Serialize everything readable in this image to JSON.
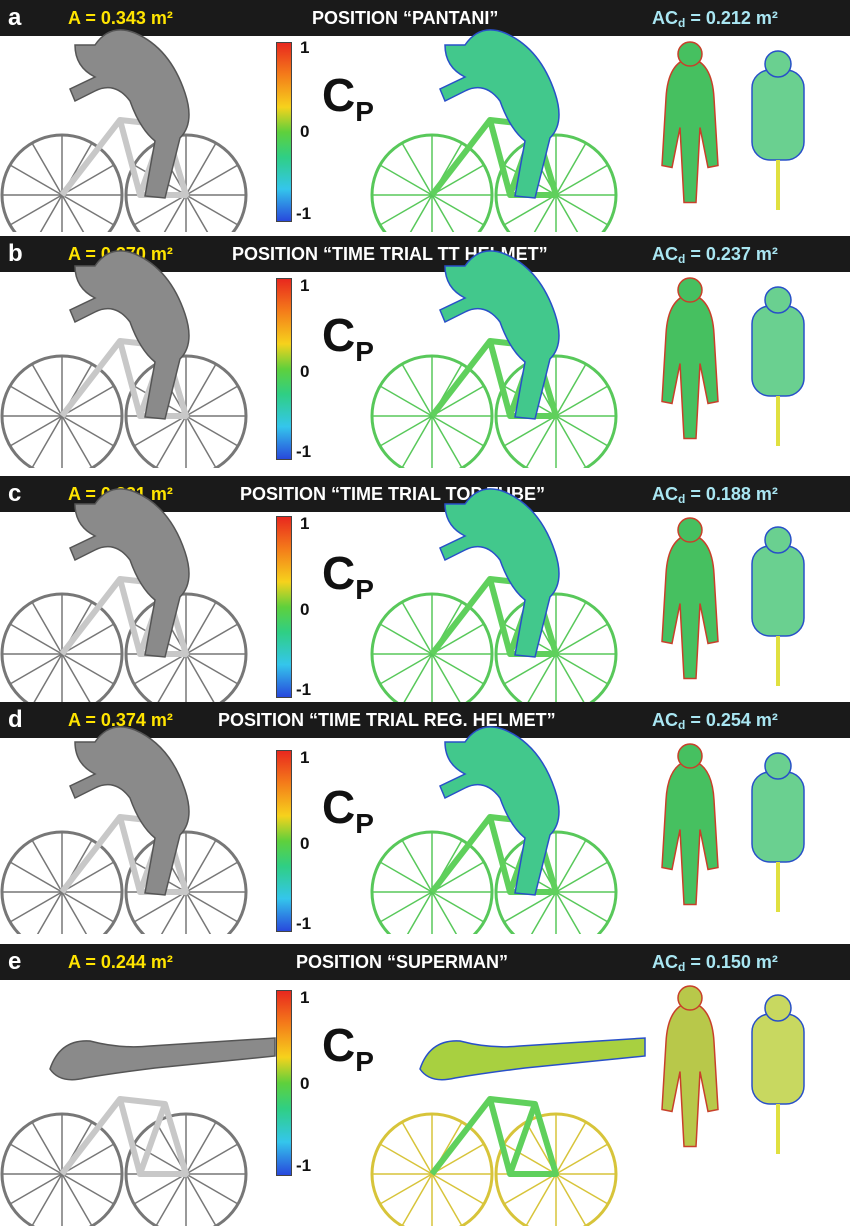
{
  "colorbar": {
    "max_label": "1",
    "mid_label": "0",
    "min_label": "-1",
    "symbol": "C",
    "symbol_sub": "P"
  },
  "panels": [
    {
      "letter": "a",
      "area": "A = 0.343 m²",
      "position": "POSITION “PANTANI”",
      "acd_prefix": "AC",
      "acd_sub": "d",
      "acd_value": " = 0.212 m²"
    },
    {
      "letter": "b",
      "area": "A = 0.370 m²",
      "position": "POSITION “TIME TRIAL TT HELMET”",
      "acd_prefix": "AC",
      "acd_sub": "d",
      "acd_value": " = 0.237 m²"
    },
    {
      "letter": "c",
      "area": "A = 0.331 m²",
      "position": "POSITION “TIME TRIAL TOP TUBE”",
      "acd_prefix": "AC",
      "acd_sub": "d",
      "acd_value": " = 0.188 m²"
    },
    {
      "letter": "d",
      "area": "A = 0.374 m²",
      "position": "POSITION “TIME TRIAL REG. HELMET”",
      "acd_prefix": "AC",
      "acd_sub": "d",
      "acd_value": " = 0.254 m²"
    },
    {
      "letter": "e",
      "area": "A = 0.244 m²",
      "position": "POSITION “SUPERMAN”",
      "acd_prefix": "AC",
      "acd_sub": "d",
      "acd_value": " = 0.150 m²"
    }
  ]
}
